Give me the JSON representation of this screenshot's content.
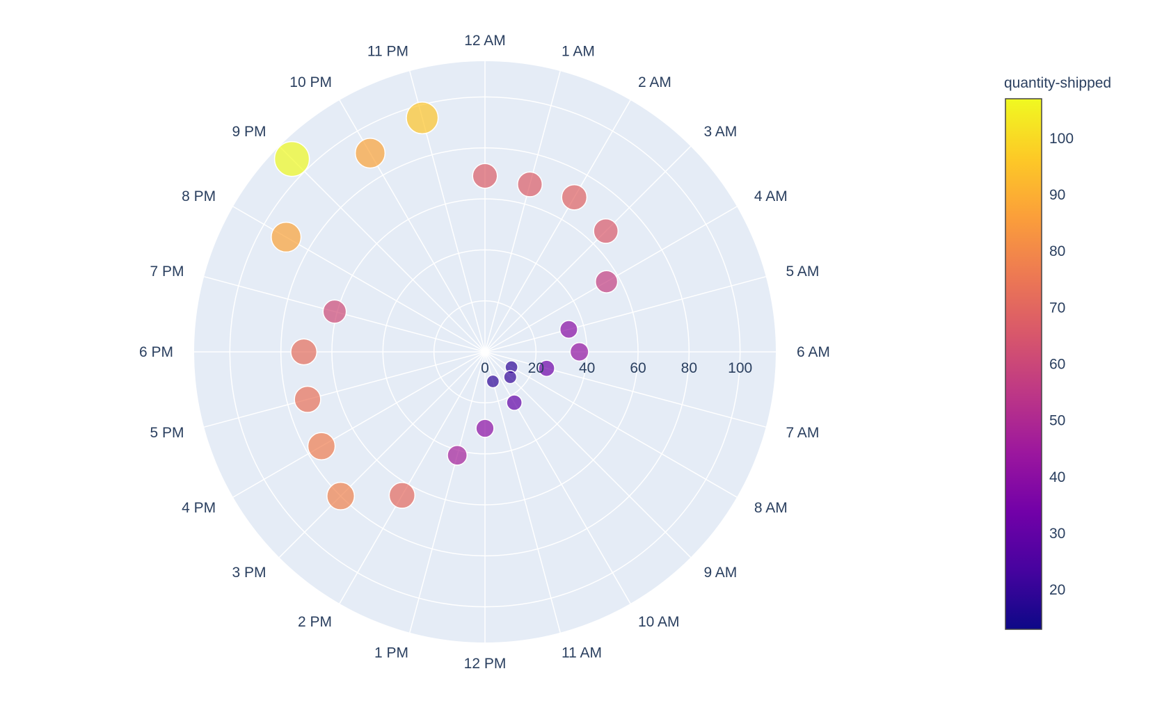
{
  "chart_data": {
    "type": "scatter-polar",
    "angular_axis": {
      "direction": "clockwise",
      "rotation": "12 AM at top",
      "categories": [
        "12 AM",
        "1 AM",
        "2 AM",
        "3 AM",
        "4 AM",
        "5 AM",
        "6 AM",
        "7 AM",
        "8 AM",
        "9 AM",
        "10 AM",
        "11 AM",
        "12 PM",
        "1 PM",
        "2 PM",
        "3 PM",
        "4 PM",
        "5 PM",
        "6 PM",
        "7 PM",
        "8 PM",
        "9 PM",
        "10 PM",
        "11 PM"
      ]
    },
    "radial_axis": {
      "range": [
        0,
        114
      ],
      "tick_values": [
        0,
        20,
        40,
        60,
        80,
        100
      ],
      "tick_labels": [
        "0",
        "20",
        "40",
        "60",
        "80",
        "100"
      ],
      "label_angle": "along 6 AM direction"
    },
    "points": [
      {
        "theta": "12 AM",
        "r": 69,
        "quantity": 67
      },
      {
        "theta": "1 AM",
        "r": 68,
        "quantity": 67
      },
      {
        "theta": "2 AM",
        "r": 70,
        "quantity": 69
      },
      {
        "theta": "3 AM",
        "r": 67,
        "quantity": 66
      },
      {
        "theta": "4 AM",
        "r": 55,
        "quantity": 57
      },
      {
        "theta": "5 AM",
        "r": 34,
        "quantity": 39
      },
      {
        "theta": "6 AM",
        "r": 37,
        "quantity": 42
      },
      {
        "theta": "7 AM",
        "r": 25,
        "quantity": 33
      },
      {
        "theta": "8 AM",
        "r": 12,
        "quantity": 19
      },
      {
        "theta": "9 AM",
        "r": 14,
        "quantity": 20
      },
      {
        "theta": "10 AM",
        "r": 23,
        "quantity": 30
      },
      {
        "theta": "11 AM",
        "r": 12,
        "quantity": 19
      },
      {
        "theta": "12 PM",
        "r": 30,
        "quantity": 40
      },
      {
        "theta": "1 PM",
        "r": 42,
        "quantity": 47
      },
      {
        "theta": "2 PM",
        "r": 65,
        "quantity": 71
      },
      {
        "theta": "3 PM",
        "r": 80,
        "quantity": 78
      },
      {
        "theta": "4 PM",
        "r": 74,
        "quantity": 77
      },
      {
        "theta": "5 PM",
        "r": 72,
        "quantity": 73
      },
      {
        "theta": "6 PM",
        "r": 71,
        "quantity": 72
      },
      {
        "theta": "7 PM",
        "r": 61,
        "quantity": 61
      },
      {
        "theta": "8 PM",
        "r": 90,
        "quantity": 87
      },
      {
        "theta": "9 PM",
        "r": 107,
        "quantity": 107
      },
      {
        "theta": "10 PM",
        "r": 90,
        "quantity": 87
      },
      {
        "theta": "11 PM",
        "r": 95,
        "quantity": 95
      }
    ],
    "color_scale": {
      "name": "plasma",
      "title": "quantity-shipped",
      "range": [
        13,
        107
      ],
      "tick_values": [
        20,
        30,
        40,
        50,
        60,
        70,
        80,
        90,
        100
      ],
      "tick_labels": [
        "20",
        "30",
        "40",
        "50",
        "60",
        "70",
        "80",
        "90",
        "100"
      ],
      "stops": [
        "#0d0887",
        "#46039f",
        "#7201a8",
        "#9c179e",
        "#bd3786",
        "#d8576b",
        "#ed7953",
        "#fb9f3a",
        "#fdca26",
        "#f0f921"
      ]
    },
    "colors": {
      "polar_background": "#e5ecf6",
      "grid": "#ffffff",
      "text": "#2a3f5f",
      "marker_outline": "#ffffff"
    },
    "marker_opacity": 0.7
  }
}
